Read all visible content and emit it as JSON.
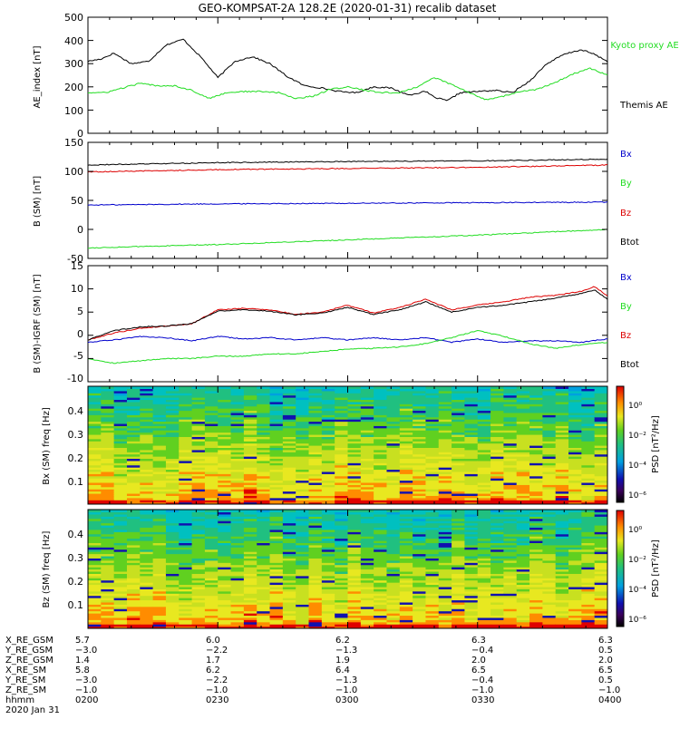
{
  "title": "GEO-KOMPSAT-2A 128.2E (2020-01-31) recalib dataset",
  "date_label": "2020 Jan 31",
  "colors": {
    "black": "#000000",
    "blue": "#0000cc",
    "green": "#22dd22",
    "red": "#dd0000"
  },
  "chart_data": [
    {
      "type": "line",
      "panel": "ae-index",
      "ylabel": "AE_index [nT]",
      "ylim": [
        0,
        500
      ],
      "yticks": [
        "0",
        "100",
        "200",
        "300",
        "400",
        "500"
      ],
      "x_range": [
        0,
        120
      ],
      "legend": [
        "Kyoto proxy AE",
        "Themis AE"
      ],
      "series": [
        {
          "name": "Themis AE",
          "color": "#000000",
          "x": [
            0,
            3,
            6,
            10,
            14,
            18,
            22,
            26,
            30,
            34,
            38,
            42,
            46,
            50,
            54,
            58,
            62,
            66,
            70,
            74,
            78,
            80,
            83,
            86,
            90,
            94,
            98,
            102,
            106,
            110,
            114,
            117,
            120
          ],
          "values": [
            310,
            320,
            345,
            300,
            310,
            380,
            405,
            330,
            240,
            310,
            330,
            300,
            245,
            205,
            195,
            180,
            175,
            200,
            195,
            165,
            180,
            155,
            140,
            175,
            180,
            185,
            175,
            225,
            300,
            340,
            360,
            340,
            310
          ]
        },
        {
          "name": "Kyoto proxy AE",
          "color": "#22dd22",
          "x": [
            0,
            4,
            8,
            12,
            16,
            20,
            24,
            28,
            32,
            36,
            40,
            44,
            48,
            52,
            56,
            60,
            64,
            68,
            72,
            76,
            80,
            84,
            88,
            92,
            96,
            100,
            104,
            108,
            112,
            116,
            120
          ],
          "values": [
            175,
            175,
            195,
            215,
            205,
            205,
            185,
            150,
            175,
            180,
            180,
            175,
            150,
            160,
            190,
            200,
            185,
            175,
            175,
            200,
            240,
            210,
            175,
            145,
            160,
            180,
            190,
            220,
            255,
            280,
            250
          ]
        }
      ]
    },
    {
      "type": "line",
      "panel": "b-sm",
      "ylabel": "B (SM) [nT]",
      "ylim": [
        -50,
        150
      ],
      "yticks": [
        "-50",
        "0",
        "50",
        "100",
        "150"
      ],
      "x_range": [
        0,
        120
      ],
      "legend": [
        "Bx",
        "By",
        "Bz",
        "Btot"
      ],
      "series": [
        {
          "name": "Bx",
          "color": "#0000cc",
          "x": [
            0,
            30,
            60,
            90,
            120
          ],
          "values": [
            42,
            44,
            45,
            46,
            47
          ]
        },
        {
          "name": "By",
          "color": "#22dd22",
          "x": [
            0,
            30,
            60,
            90,
            120
          ],
          "values": [
            -32,
            -26,
            -18,
            -10,
            0
          ]
        },
        {
          "name": "Bz",
          "color": "#dd0000",
          "x": [
            0,
            30,
            60,
            90,
            120
          ],
          "values": [
            99,
            103,
            105,
            107,
            111
          ]
        },
        {
          "name": "Btot",
          "color": "#000000",
          "x": [
            0,
            30,
            60,
            90,
            120
          ],
          "values": [
            111,
            115,
            117,
            118,
            121
          ]
        }
      ]
    },
    {
      "type": "line",
      "panel": "b-minus-igrf",
      "ylabel": "B (SM)-IGRF (SM) [nT]",
      "ylim": [
        -10,
        15
      ],
      "yticks": [
        "-10",
        "-5",
        "0",
        "5",
        "10",
        "15"
      ],
      "x_range": [
        0,
        120
      ],
      "legend": [
        "Bx",
        "By",
        "Bz",
        "Btot"
      ],
      "series": [
        {
          "name": "Bz",
          "color": "#dd0000",
          "x": [
            0,
            6,
            12,
            18,
            24,
            30,
            36,
            42,
            48,
            54,
            60,
            66,
            72,
            78,
            84,
            90,
            96,
            102,
            108,
            114,
            117,
            120
          ],
          "values": [
            -1,
            0.5,
            1.5,
            2,
            2.5,
            5.5,
            5.8,
            5.5,
            4.5,
            5,
            6.5,
            4.8,
            6,
            7.8,
            5.5,
            6.5,
            7.2,
            8.2,
            8.6,
            9.5,
            10.5,
            8.5
          ]
        },
        {
          "name": "Btot",
          "color": "#000000",
          "x": [
            0,
            6,
            12,
            18,
            24,
            30,
            36,
            42,
            48,
            54,
            60,
            66,
            72,
            78,
            84,
            90,
            96,
            102,
            108,
            114,
            117,
            120
          ],
          "values": [
            -1,
            1,
            1.8,
            2,
            2.5,
            5.2,
            5.5,
            5.2,
            4.4,
            4.8,
            6,
            4.5,
            5.5,
            7.2,
            5,
            6,
            6.5,
            7.2,
            8,
            9,
            9.8,
            7.8
          ]
        },
        {
          "name": "Bx",
          "color": "#0000cc",
          "x": [
            0,
            6,
            12,
            18,
            24,
            30,
            36,
            42,
            48,
            54,
            60,
            66,
            72,
            78,
            84,
            90,
            96,
            102,
            108,
            114,
            120
          ],
          "values": [
            -1.5,
            -1,
            -0.3,
            -0.5,
            -1.2,
            -0.2,
            -0.8,
            -0.5,
            -1,
            -0.5,
            -1,
            -0.5,
            -1,
            -0.5,
            -1.5,
            -0.8,
            -1.5,
            -1.2,
            -1.2,
            -1.5,
            -0.8
          ]
        },
        {
          "name": "By",
          "color": "#22dd22",
          "x": [
            0,
            6,
            12,
            18,
            24,
            30,
            36,
            42,
            48,
            54,
            60,
            66,
            72,
            78,
            84,
            90,
            96,
            102,
            108,
            114,
            120
          ],
          "values": [
            -5,
            -6,
            -5.5,
            -5,
            -5,
            -4.5,
            -4.5,
            -4,
            -4,
            -3.5,
            -3,
            -2.8,
            -2.5,
            -1.8,
            -0.5,
            1,
            -0.2,
            -1.8,
            -2.8,
            -2,
            -1.5
          ]
        }
      ]
    },
    {
      "type": "heatmap",
      "panel": "bx-spectrogram",
      "ylabel": "Bx (SM) freq [Hz]",
      "ylim": [
        0,
        0.5
      ],
      "yticks": [
        "0.1",
        "0.2",
        "0.3",
        "0.4"
      ],
      "colorbar_label": "PSD [nT²/Hz]",
      "colorbar_ticks": [
        "10⁰",
        "10⁻²",
        "10⁻⁴",
        "10⁻⁶"
      ]
    },
    {
      "type": "heatmap",
      "panel": "bz-spectrogram",
      "ylabel": "Bz (SM) freq [Hz]",
      "ylim": [
        0,
        0.5
      ],
      "yticks": [
        "0.1",
        "0.2",
        "0.3",
        "0.4"
      ],
      "colorbar_label": "PSD [nT²/Hz]",
      "colorbar_ticks": [
        "10⁰",
        "10⁻²",
        "10⁻⁴",
        "10⁻⁶"
      ]
    }
  ],
  "ephemeris": {
    "rows": [
      {
        "label": "X_RE_GSM",
        "values": [
          "5.7",
          "6.0",
          "6.2",
          "6.3",
          "6.3"
        ]
      },
      {
        "label": "Y_RE_GSM",
        "values": [
          "−3.0",
          "−2.2",
          "−1.3",
          "−0.4",
          "0.5"
        ]
      },
      {
        "label": "Z_RE_GSM",
        "values": [
          "1.4",
          "1.7",
          "1.9",
          "2.0",
          "2.0"
        ]
      },
      {
        "label": "X_RE_SM",
        "values": [
          "5.8",
          "6.2",
          "6.4",
          "6.5",
          "6.5"
        ]
      },
      {
        "label": "Y_RE_SM",
        "values": [
          "−3.0",
          "−2.2",
          "−1.3",
          "−0.4",
          "0.5"
        ]
      },
      {
        "label": "Z_RE_SM",
        "values": [
          "−1.0",
          "−1.0",
          "−1.0",
          "−1.0",
          "−1.0"
        ]
      },
      {
        "label": "hhmm",
        "values": [
          "0200",
          "0230",
          "0300",
          "0330",
          "0400"
        ]
      }
    ]
  }
}
